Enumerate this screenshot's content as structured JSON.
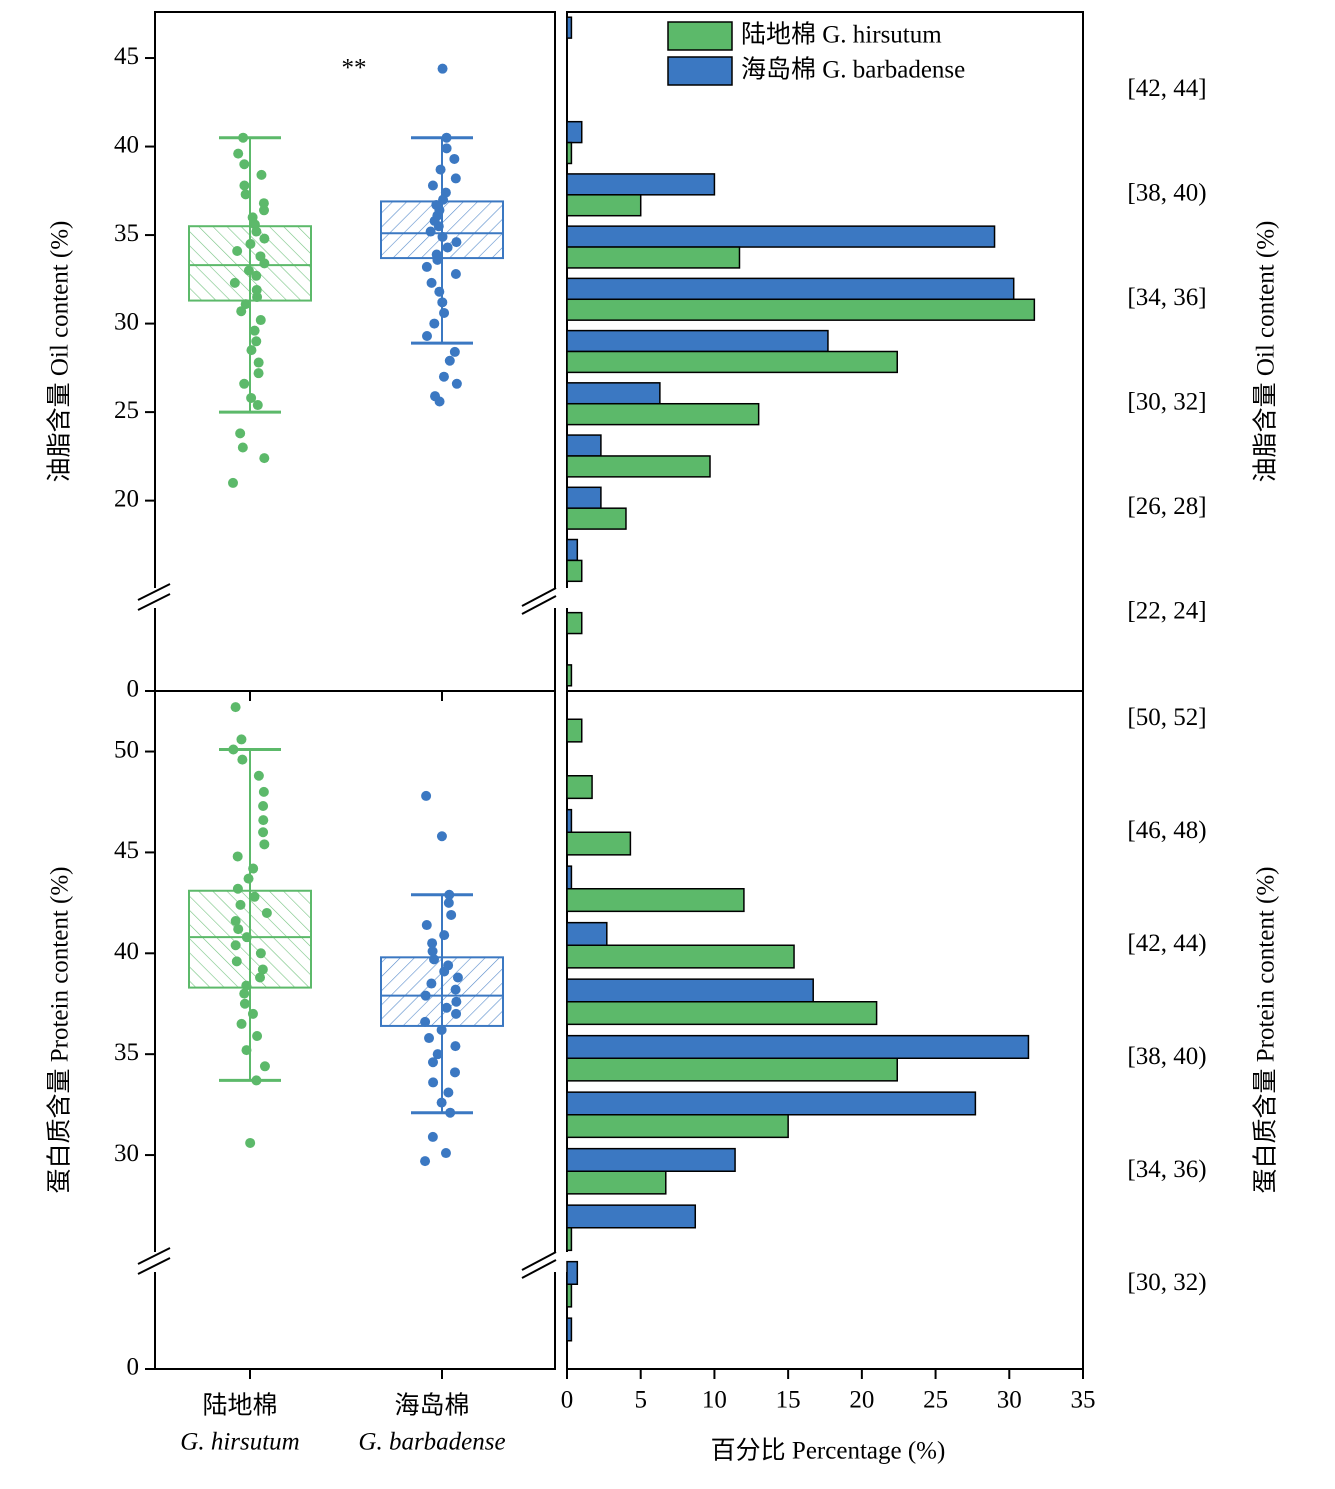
{
  "chart_data": [
    {
      "type": "box",
      "ylabel": "油脂含量 Oil content (%)",
      "ylim": [
        0,
        47.6
      ],
      "ybreak": [
        5.3,
        14.5
      ],
      "yticks": [
        0,
        20,
        25,
        30,
        35,
        40,
        45
      ],
      "categories": [
        "陆地棉",
        "海岛棉"
      ],
      "categories_latin": [
        "G. hirsutum",
        "G. barbadense"
      ],
      "annotation": "**",
      "series": [
        {
          "name": "陆地棉 G. hirsutum",
          "color": "#5cb96a",
          "whisker_low": 25.0,
          "q1": 31.3,
          "median": 33.3,
          "q3": 35.5,
          "whisker_high": 40.5,
          "points": [
            21.0,
            22.4,
            23.0,
            23.8,
            25.4,
            25.8,
            26.6,
            27.2,
            27.8,
            28.5,
            29.0,
            29.6,
            30.2,
            30.7,
            31.1,
            31.5,
            31.9,
            32.3,
            32.7,
            33.0,
            33.4,
            33.8,
            34.1,
            34.5,
            34.8,
            35.2,
            35.6,
            36.0,
            36.4,
            36.8,
            37.3,
            37.8,
            38.4,
            39.0,
            39.6,
            40.5
          ]
        },
        {
          "name": "海岛棉 G. barbadense",
          "color": "#3b78c2",
          "whisker_low": 28.9,
          "q1": 33.7,
          "median": 35.1,
          "q3": 36.9,
          "whisker_high": 40.5,
          "points": [
            25.6,
            25.9,
            26.6,
            27.0,
            27.9,
            28.4,
            29.3,
            30.0,
            30.6,
            31.2,
            31.8,
            32.3,
            32.8,
            33.2,
            33.6,
            33.9,
            34.3,
            34.6,
            34.9,
            35.2,
            35.5,
            35.8,
            36.1,
            36.4,
            36.7,
            37.0,
            37.4,
            37.8,
            38.2,
            38.7,
            39.3,
            39.9,
            40.5,
            44.4
          ]
        }
      ]
    },
    {
      "type": "barh",
      "xlim": [
        0,
        35
      ],
      "categories": [
        null,
        "[42, 44]",
        null,
        "[38, 40)",
        null,
        "[34, 36]",
        null,
        "[30, 32]",
        null,
        "[26, 28]",
        null,
        "[22, 24]",
        null
      ],
      "series": [
        {
          "name": "陆地棉 G. hirsutum",
          "color": "#5cb96a",
          "values": [
            0,
            0,
            0.3,
            5.0,
            11.7,
            31.7,
            22.4,
            13.0,
            9.7,
            4.0,
            1.0,
            1.0,
            0.3
          ]
        },
        {
          "name": "海岛棉 G. barbadense",
          "color": "#3b78c2",
          "values": [
            0.3,
            0,
            1.0,
            10.0,
            29.0,
            30.3,
            17.7,
            6.3,
            2.3,
            2.3,
            0.7,
            0,
            0
          ]
        }
      ]
    },
    {
      "type": "box",
      "ylabel": "蛋白质含量 Protein content (%)",
      "ylim": [
        0,
        53
      ],
      "ybreak": [
        5.3,
        24.7
      ],
      "yticks": [
        0,
        30,
        35,
        40,
        45,
        50
      ],
      "categories": [
        "陆地棉",
        "海岛棉"
      ],
      "categories_latin": [
        "G. hirsutum",
        "G. barbadense"
      ],
      "series": [
        {
          "name": "陆地棉 G. hirsutum",
          "color": "#5cb96a",
          "whisker_low": 33.7,
          "q1": 38.3,
          "median": 40.8,
          "q3": 43.1,
          "whisker_high": 50.1,
          "points": [
            30.6,
            33.7,
            34.4,
            35.2,
            35.9,
            36.5,
            37.0,
            37.5,
            38.0,
            38.4,
            38.8,
            39.2,
            39.6,
            40.0,
            40.4,
            40.8,
            41.2,
            41.6,
            42.0,
            42.4,
            42.8,
            43.2,
            43.7,
            44.2,
            44.8,
            45.4,
            46.0,
            46.6,
            47.3,
            48.0,
            48.8,
            49.6,
            50.1,
            50.6,
            52.2
          ]
        },
        {
          "name": "海岛棉 G. barbadense",
          "color": "#3b78c2",
          "whisker_low": 32.1,
          "q1": 36.4,
          "median": 37.9,
          "q3": 39.8,
          "whisker_high": 42.9,
          "points": [
            29.7,
            30.1,
            30.9,
            32.1,
            32.6,
            33.1,
            33.6,
            34.1,
            34.6,
            35.0,
            35.4,
            35.8,
            36.2,
            36.6,
            37.0,
            37.3,
            37.6,
            37.9,
            38.2,
            38.5,
            38.8,
            39.1,
            39.4,
            39.7,
            40.1,
            40.5,
            40.9,
            41.4,
            41.9,
            42.5,
            42.9,
            45.8,
            47.8
          ]
        }
      ]
    },
    {
      "type": "barh",
      "xlim": [
        0,
        35
      ],
      "xticks": [
        0,
        5,
        10,
        15,
        20,
        25,
        30,
        35
      ],
      "xlabel": "百分比 Percentage (%)",
      "categories": [
        "[50, 52]",
        null,
        "[46, 48)",
        null,
        "[42, 44)",
        null,
        "[38, 40)",
        null,
        "[34, 36)",
        null,
        "[30, 32)",
        null
      ],
      "series": [
        {
          "name": "陆地棉 G. hirsutum",
          "color": "#5cb96a",
          "values": [
            1.0,
            1.7,
            4.3,
            12.0,
            15.4,
            21.0,
            22.4,
            15.0,
            6.7,
            0.3,
            0.3,
            0
          ]
        },
        {
          "name": "海岛棉 G. barbadense",
          "color": "#3b78c2",
          "values": [
            0,
            0,
            0.3,
            0.3,
            2.7,
            16.7,
            31.3,
            27.7,
            11.4,
            8.7,
            0.7,
            0.3
          ]
        }
      ]
    }
  ]
}
